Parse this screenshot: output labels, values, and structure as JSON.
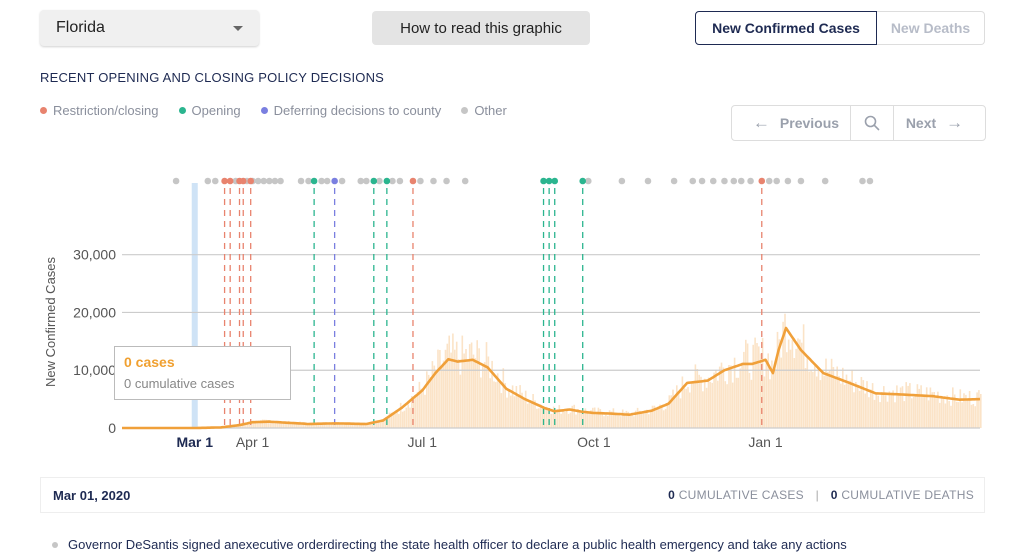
{
  "state_selector": {
    "value": "Florida"
  },
  "howto_button": {
    "label": "How to read this graphic"
  },
  "metric_toggle": {
    "active": "New Confirmed Cases",
    "inactive": "New Deaths"
  },
  "section_title": "RECENT OPENING AND CLOSING POLICY DECISIONS",
  "legend": [
    {
      "label": "Restriction/closing",
      "color": "#e8836e"
    },
    {
      "label": "Opening",
      "color": "#2bb58f"
    },
    {
      "label": "Deferring decisions to county",
      "color": "#7a7fe0"
    },
    {
      "label": "Other",
      "color": "#c6c6c6"
    }
  ],
  "pager": {
    "previous": "Previous",
    "next": "Next",
    "prev_arrow": "←",
    "next_arrow": "→",
    "search_icon": "search-icon"
  },
  "tooltip": {
    "cases": "0 cases",
    "cumulative": "0 cumulative cases"
  },
  "detail": {
    "date": "Mar 01, 2020",
    "cumulative_cases_value": "0",
    "cumulative_cases_label": "CUMULATIVE CASES",
    "separator": "|",
    "cumulative_deaths_value": "0",
    "cumulative_deaths_label": "CUMULATIVE DEATHS",
    "note": "Governor DeSantis signed anexecutive orderdirecting the state health officer to declare a public health emergency and take any actions"
  },
  "chart_data": {
    "type": "line",
    "ylabel": "New Confirmed Cases",
    "xlabel": "",
    "ylim": [
      0,
      36000
    ],
    "yticks": [
      0,
      10000,
      20000,
      30000
    ],
    "ytick_labels": [
      "0",
      "10,000",
      "20,000",
      "30,000"
    ],
    "xlim": [
      "2020-01-22",
      "2021-04-26"
    ],
    "xticks": [
      {
        "date": "2020-03-01",
        "label": "Mar 1",
        "highlight": true
      },
      {
        "date": "2020-04-01",
        "label": "Apr 1",
        "highlight": false
      },
      {
        "date": "2020-07-01",
        "label": "Jul 1",
        "highlight": false
      },
      {
        "date": "2020-10-01",
        "label": "Oct 1",
        "highlight": false
      },
      {
        "date": "2021-01-01",
        "label": "Jan 1",
        "highlight": false
      }
    ],
    "selected_date": "2020-03-01",
    "colors": {
      "line": "#f0a03a",
      "bars": "#fbe3c7",
      "grid": "#cccccc",
      "selected": "#cfe3f6"
    },
    "series": [
      {
        "kind": "7-day average",
        "x": [
          "2020-01-22",
          "2020-03-01",
          "2020-03-15",
          "2020-03-25",
          "2020-04-01",
          "2020-04-10",
          "2020-04-20",
          "2020-05-01",
          "2020-05-15",
          "2020-06-01",
          "2020-06-10",
          "2020-06-20",
          "2020-07-01",
          "2020-07-08",
          "2020-07-15",
          "2020-07-20",
          "2020-07-28",
          "2020-08-05",
          "2020-08-15",
          "2020-08-25",
          "2020-09-05",
          "2020-09-10",
          "2020-09-18",
          "2020-09-25",
          "2020-10-01",
          "2020-10-10",
          "2020-10-20",
          "2020-11-01",
          "2020-11-10",
          "2020-11-20",
          "2020-12-01",
          "2020-12-10",
          "2020-12-20",
          "2020-12-25",
          "2021-01-01",
          "2021-01-05",
          "2021-01-08",
          "2021-01-12",
          "2021-01-20",
          "2021-02-01",
          "2021-02-15",
          "2021-03-01",
          "2021-03-15",
          "2021-04-01",
          "2021-04-15",
          "2021-04-26"
        ],
        "y": [
          0,
          0,
          100,
          500,
          1000,
          1100,
          900,
          700,
          800,
          700,
          1300,
          3500,
          6500,
          9500,
          11900,
          11500,
          11800,
          10500,
          6800,
          5000,
          3400,
          2900,
          3200,
          2800,
          2600,
          2500,
          2300,
          3000,
          4200,
          7800,
          8200,
          10000,
          11100,
          11100,
          11800,
          9500,
          13500,
          17300,
          13500,
          9500,
          7800,
          6000,
          5800,
          5500,
          4900,
          5000
        ]
      }
    ],
    "daily_bars": "daily new confirmed cases shown as light bars behind the average",
    "policy_markers": {
      "restriction_closing": [
        "2020-03-17",
        "2020-03-20",
        "2020-03-25",
        "2020-03-27",
        "2020-03-31",
        "2020-06-26",
        "2020-12-30"
      ],
      "opening": [
        "2020-05-04",
        "2020-06-05",
        "2020-06-12",
        "2020-09-04",
        "2020-09-07",
        "2020-09-10",
        "2020-09-25"
      ],
      "deferring_to_county": [
        "2020-05-15"
      ],
      "other": [
        "2020-02-20",
        "2020-03-08",
        "2020-03-12",
        "2020-03-23",
        "2020-03-29",
        "2020-04-01",
        "2020-04-04",
        "2020-04-07",
        "2020-04-10",
        "2020-04-13",
        "2020-04-16",
        "2020-04-27",
        "2020-05-01",
        "2020-05-08",
        "2020-05-11",
        "2020-05-19",
        "2020-05-29",
        "2020-06-01",
        "2020-06-08",
        "2020-06-15",
        "2020-06-19",
        "2020-06-30",
        "2020-07-07",
        "2020-07-14",
        "2020-07-24",
        "2020-09-28",
        "2020-10-16",
        "2020-10-30",
        "2020-11-13",
        "2020-11-23",
        "2020-11-28",
        "2020-12-04",
        "2020-12-10",
        "2020-12-15",
        "2020-12-19",
        "2020-12-24",
        "2021-01-03",
        "2021-01-07",
        "2021-01-13",
        "2021-01-20",
        "2021-02-02",
        "2021-02-22",
        "2021-02-26"
      ]
    },
    "grid": true
  }
}
